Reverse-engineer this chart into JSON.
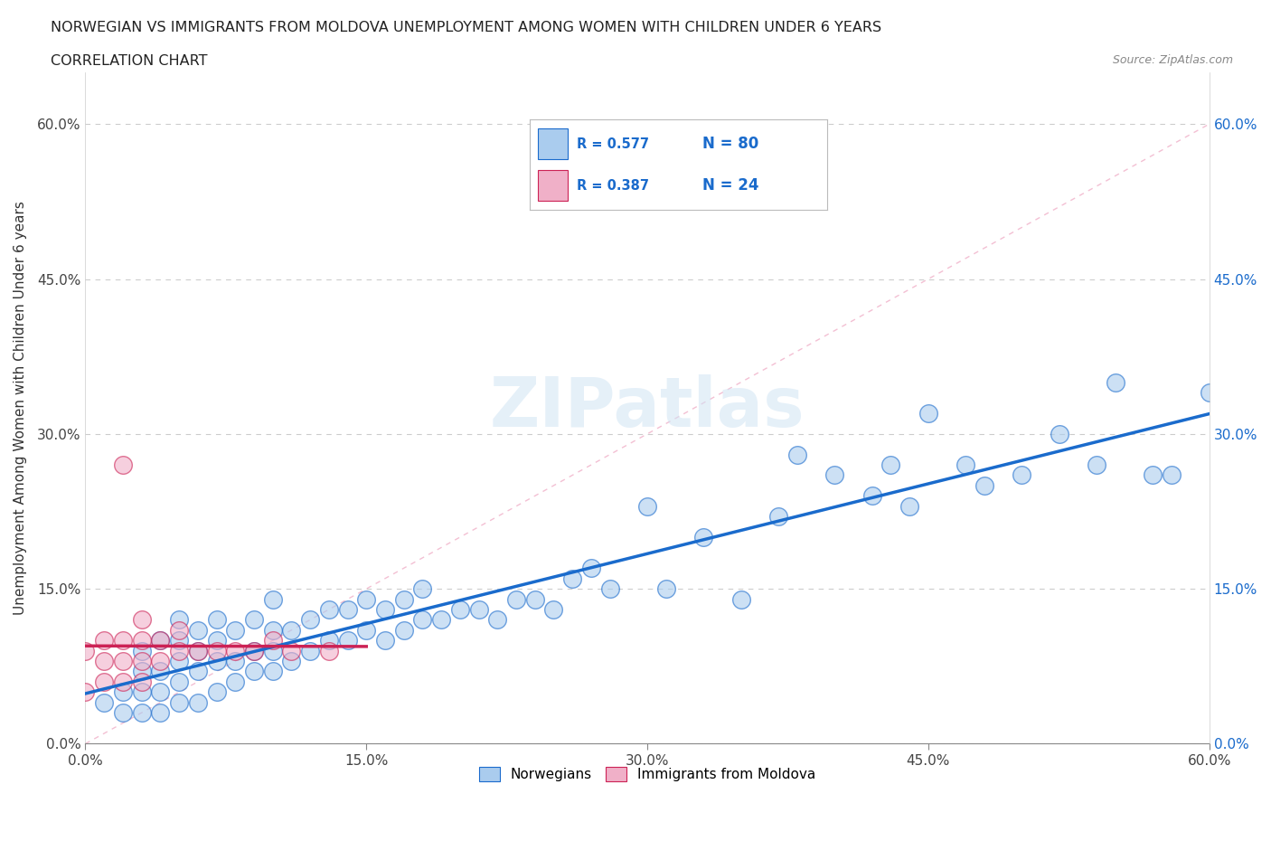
{
  "title_line1": "NORWEGIAN VS IMMIGRANTS FROM MOLDOVA UNEMPLOYMENT AMONG WOMEN WITH CHILDREN UNDER 6 YEARS",
  "title_line2": "CORRELATION CHART",
  "source": "Source: ZipAtlas.com",
  "ylabel": "Unemployment Among Women with Children Under 6 years",
  "xlim": [
    0.0,
    0.6
  ],
  "ylim": [
    0.0,
    0.65
  ],
  "xticks": [
    0.0,
    0.15,
    0.3,
    0.45,
    0.6
  ],
  "yticks": [
    0.0,
    0.15,
    0.3,
    0.45,
    0.6
  ],
  "xticklabels": [
    "0.0%",
    "15.0%",
    "30.0%",
    "45.0%",
    "60.0%"
  ],
  "yticklabels": [
    "0.0%",
    "15.0%",
    "30.0%",
    "45.0%",
    "60.0%"
  ],
  "watermark": "ZIPatlas",
  "norwegian_color": "#aaccee",
  "moldova_color": "#f0b0c8",
  "norwegian_trend_color": "#1a6bcc",
  "moldova_trend_color": "#cc2255",
  "diagonal_color": "#f0b0c8",
  "R_norwegian": 0.577,
  "N_norwegian": 80,
  "R_moldova": 0.387,
  "N_moldova": 24,
  "norwegian_x": [
    0.01,
    0.02,
    0.02,
    0.03,
    0.03,
    0.03,
    0.03,
    0.04,
    0.04,
    0.04,
    0.04,
    0.05,
    0.05,
    0.05,
    0.05,
    0.05,
    0.06,
    0.06,
    0.06,
    0.06,
    0.07,
    0.07,
    0.07,
    0.07,
    0.08,
    0.08,
    0.08,
    0.09,
    0.09,
    0.09,
    0.1,
    0.1,
    0.1,
    0.1,
    0.11,
    0.11,
    0.12,
    0.12,
    0.13,
    0.13,
    0.14,
    0.14,
    0.15,
    0.15,
    0.16,
    0.16,
    0.17,
    0.17,
    0.18,
    0.18,
    0.19,
    0.2,
    0.21,
    0.22,
    0.23,
    0.24,
    0.25,
    0.26,
    0.27,
    0.28,
    0.3,
    0.31,
    0.33,
    0.35,
    0.37,
    0.38,
    0.4,
    0.42,
    0.43,
    0.44,
    0.45,
    0.47,
    0.48,
    0.5,
    0.52,
    0.54,
    0.55,
    0.57,
    0.58,
    0.6
  ],
  "norwegian_y": [
    0.04,
    0.03,
    0.05,
    0.03,
    0.05,
    0.07,
    0.09,
    0.03,
    0.05,
    0.07,
    0.1,
    0.04,
    0.06,
    0.08,
    0.1,
    0.12,
    0.04,
    0.07,
    0.09,
    0.11,
    0.05,
    0.08,
    0.1,
    0.12,
    0.06,
    0.08,
    0.11,
    0.07,
    0.09,
    0.12,
    0.07,
    0.09,
    0.11,
    0.14,
    0.08,
    0.11,
    0.09,
    0.12,
    0.1,
    0.13,
    0.1,
    0.13,
    0.11,
    0.14,
    0.1,
    0.13,
    0.11,
    0.14,
    0.12,
    0.15,
    0.12,
    0.13,
    0.13,
    0.12,
    0.14,
    0.14,
    0.13,
    0.16,
    0.17,
    0.15,
    0.23,
    0.15,
    0.2,
    0.14,
    0.22,
    0.28,
    0.26,
    0.24,
    0.27,
    0.23,
    0.32,
    0.27,
    0.25,
    0.26,
    0.3,
    0.27,
    0.35,
    0.26,
    0.26,
    0.34
  ],
  "moldova_x": [
    0.0,
    0.0,
    0.01,
    0.01,
    0.01,
    0.02,
    0.02,
    0.02,
    0.02,
    0.03,
    0.03,
    0.03,
    0.03,
    0.04,
    0.04,
    0.05,
    0.05,
    0.06,
    0.07,
    0.08,
    0.09,
    0.1,
    0.11,
    0.13
  ],
  "moldova_y": [
    0.05,
    0.09,
    0.06,
    0.08,
    0.1,
    0.06,
    0.08,
    0.1,
    0.27,
    0.06,
    0.08,
    0.1,
    0.12,
    0.08,
    0.1,
    0.09,
    0.11,
    0.09,
    0.09,
    0.09,
    0.09,
    0.1,
    0.09,
    0.09
  ]
}
